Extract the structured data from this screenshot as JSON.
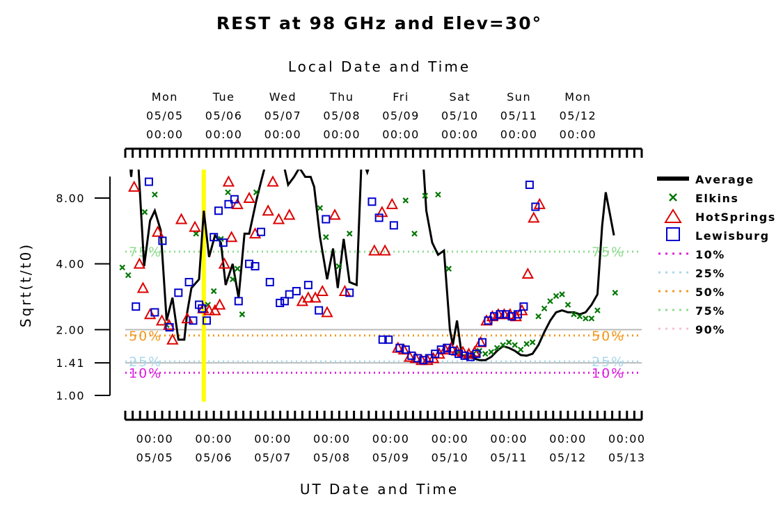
{
  "chart_data": {
    "type": "scatter",
    "title": "REST at 98 GHz and Elev=30°",
    "top_axis_title": "Local Date and Time",
    "xlabel": "UT Date and Time",
    "ylabel": "Sqrt(t/t0)",
    "y_scale": "log",
    "ylim": [
      1.0,
      11.0
    ],
    "xlim": [
      "05/04 12:00",
      "05/13 06:00"
    ],
    "y_ticks": [
      {
        "value": 1.0,
        "label": "1.00"
      },
      {
        "value": 1.41,
        "label": "1.41"
      },
      {
        "value": 2.0,
        "label": "2.00"
      },
      {
        "value": 4.0,
        "label": "4.00"
      },
      {
        "value": 8.0,
        "label": "8.00"
      }
    ],
    "bottom_ticks": [
      {
        "day": 0.5,
        "time": "00:00",
        "date": "05/05"
      },
      {
        "day": 1.5,
        "time": "00:00",
        "date": "05/06"
      },
      {
        "day": 2.5,
        "time": "00:00",
        "date": "05/07"
      },
      {
        "day": 3.5,
        "time": "00:00",
        "date": "05/08"
      },
      {
        "day": 4.5,
        "time": "00:00",
        "date": "05/09"
      },
      {
        "day": 5.5,
        "time": "00:00",
        "date": "05/10"
      },
      {
        "day": 6.5,
        "time": "00:00",
        "date": "05/11"
      },
      {
        "day": 7.5,
        "time": "00:00",
        "date": "05/12"
      },
      {
        "day": 8.5,
        "time": "00:00",
        "date": "05/13"
      }
    ],
    "top_ticks": [
      {
        "day": 0.67,
        "dow": "Mon",
        "date": "05/05",
        "time": "00:00"
      },
      {
        "day": 1.67,
        "dow": "Tue",
        "date": "05/06",
        "time": "00:00"
      },
      {
        "day": 2.67,
        "dow": "Wed",
        "date": "05/07",
        "time": "00:00"
      },
      {
        "day": 3.67,
        "dow": "Thu",
        "date": "05/08",
        "time": "00:00"
      },
      {
        "day": 4.67,
        "dow": "Fri",
        "date": "05/09",
        "time": "00:00"
      },
      {
        "day": 5.67,
        "dow": "Sat",
        "date": "05/10",
        "time": "00:00"
      },
      {
        "day": 6.67,
        "dow": "Sun",
        "date": "05/11",
        "time": "00:00"
      },
      {
        "day": 7.67,
        "dow": "Mon",
        "date": "05/12",
        "time": "00:00"
      }
    ],
    "current_time_marker": {
      "day": 1.33,
      "color": "#ffff00"
    },
    "reference_lines": [
      {
        "value": 2.0,
        "color": "#bbbbbb"
      },
      {
        "value": 1.41,
        "color": "#bbbbbb"
      }
    ],
    "percentiles": [
      {
        "label": "10%",
        "value": 1.27,
        "color": "#dd22dd"
      },
      {
        "label": "25%",
        "value": 1.43,
        "color": "#a8d8ea"
      },
      {
        "label": "50%",
        "value": 1.88,
        "color": "#f09a20"
      },
      {
        "label": "75%",
        "value": 4.55,
        "color": "#8fdc8f"
      }
    ],
    "legend": [
      {
        "name": "Average",
        "symbol": "line",
        "color": "#000000"
      },
      {
        "name": "Elkins",
        "symbol": "x",
        "color": "#007700"
      },
      {
        "name": "HotSprings",
        "symbol": "triangle",
        "color": "#dd0000"
      },
      {
        "name": "Lewisburg",
        "symbol": "square",
        "color": "#0000cc"
      },
      {
        "name": "10%",
        "symbol": "dotted",
        "color": "#dd22dd"
      },
      {
        "name": "25%",
        "symbol": "dotted",
        "color": "#a8d8ea"
      },
      {
        "name": "50%",
        "symbol": "dotted",
        "color": "#f09a20"
      },
      {
        "name": "75%",
        "symbol": "dotted",
        "color": "#8fdc8f"
      },
      {
        "name": "90%",
        "symbol": "dotted",
        "color": "#f7c0cc"
      }
    ],
    "series": [
      {
        "name": "Average",
        "type": "line",
        "color": "#000000",
        "segments": [
          [
            [
              0.08,
              11.5
            ],
            [
              0.1,
              10.0
            ],
            [
              0.12,
              11.5
            ]
          ],
          [
            [
              0.22,
              11.5
            ],
            [
              0.32,
              3.9
            ],
            [
              0.42,
              6.3
            ],
            [
              0.5,
              7.0
            ],
            [
              0.6,
              5.7
            ],
            [
              0.7,
              2.2
            ],
            [
              0.8,
              2.8
            ],
            [
              0.9,
              1.8
            ],
            [
              1.0,
              1.8
            ],
            [
              1.05,
              2.4
            ],
            [
              1.12,
              3.1
            ],
            [
              1.25,
              3.4
            ],
            [
              1.33,
              7.0
            ],
            [
              1.42,
              4.3
            ],
            [
              1.52,
              5.4
            ],
            [
              1.62,
              5.0
            ],
            [
              1.7,
              3.2
            ],
            [
              1.82,
              4.0
            ],
            [
              1.92,
              2.8
            ],
            [
              2.02,
              5.5
            ],
            [
              2.1,
              5.5
            ],
            [
              2.22,
              7.8
            ],
            [
              2.3,
              9.5
            ],
            [
              2.38,
              11.5
            ]
          ],
          [
            [
              2.68,
              11.5
            ],
            [
              2.76,
              9.2
            ],
            [
              2.86,
              10.0
            ],
            [
              2.95,
              11.0
            ],
            [
              3.05,
              10.0
            ],
            [
              3.14,
              10.0
            ],
            [
              3.2,
              9.0
            ],
            [
              3.3,
              5.3
            ],
            [
              3.42,
              3.4
            ],
            [
              3.52,
              4.7
            ],
            [
              3.6,
              3.1
            ],
            [
              3.7,
              5.2
            ],
            [
              3.8,
              3.3
            ],
            [
              3.92,
              3.2
            ],
            [
              4.0,
              11.5
            ]
          ],
          [
            [
              4.05,
              11.5
            ],
            [
              4.1,
              10.5
            ],
            [
              4.15,
              11.5
            ]
          ],
          [
            [
              5.05,
              11.5
            ],
            [
              5.1,
              7.0
            ],
            [
              5.2,
              5.0
            ],
            [
              5.3,
              4.4
            ],
            [
              5.4,
              4.6
            ],
            [
              5.5,
              2.0
            ],
            [
              5.55,
              1.7
            ],
            [
              5.62,
              2.2
            ],
            [
              5.7,
              1.53
            ],
            [
              5.8,
              1.5
            ],
            [
              5.9,
              1.48
            ],
            [
              6.0,
              1.45
            ],
            [
              6.1,
              1.45
            ],
            [
              6.2,
              1.5
            ],
            [
              6.3,
              1.6
            ],
            [
              6.4,
              1.68
            ],
            [
              6.5,
              1.65
            ],
            [
              6.6,
              1.6
            ],
            [
              6.7,
              1.53
            ],
            [
              6.8,
              1.52
            ],
            [
              6.9,
              1.55
            ],
            [
              7.0,
              1.7
            ],
            [
              7.1,
              1.95
            ],
            [
              7.2,
              2.2
            ],
            [
              7.3,
              2.4
            ],
            [
              7.4,
              2.45
            ],
            [
              7.5,
              2.4
            ],
            [
              7.6,
              2.4
            ],
            [
              7.7,
              2.35
            ],
            [
              7.8,
              2.4
            ],
            [
              7.9,
              2.6
            ],
            [
              8.0,
              2.9
            ],
            [
              8.08,
              6.0
            ],
            [
              8.14,
              8.5
            ],
            [
              8.2,
              7.0
            ],
            [
              8.28,
              5.4
            ]
          ]
        ]
      },
      {
        "name": "Elkins",
        "type": "scatter",
        "marker": "x",
        "color": "#007700",
        "points": [
          [
            -0.05,
            3.85
          ],
          [
            0.05,
            3.55
          ],
          [
            0.33,
            6.9
          ],
          [
            0.5,
            8.3
          ],
          [
            0.7,
            2.1
          ],
          [
            1.2,
            5.5
          ],
          [
            1.4,
            2.6
          ],
          [
            1.5,
            3.0
          ],
          [
            1.62,
            5.2
          ],
          [
            1.74,
            8.5
          ],
          [
            1.82,
            3.4
          ],
          [
            1.9,
            3.8
          ],
          [
            1.98,
            2.35
          ],
          [
            2.22,
            8.5
          ],
          [
            3.3,
            7.2
          ],
          [
            3.4,
            5.3
          ],
          [
            3.62,
            3.9
          ],
          [
            3.8,
            5.5
          ],
          [
            4.75,
            7.8
          ],
          [
            4.9,
            5.5
          ],
          [
            5.08,
            8.2
          ],
          [
            5.3,
            8.3
          ],
          [
            5.48,
            3.8
          ],
          [
            5.65,
            1.58
          ],
          [
            5.78,
            1.5
          ],
          [
            5.9,
            1.55
          ],
          [
            6.0,
            1.6
          ],
          [
            6.1,
            1.55
          ],
          [
            6.2,
            1.58
          ],
          [
            6.3,
            1.65
          ],
          [
            6.4,
            1.7
          ],
          [
            6.5,
            1.75
          ],
          [
            6.6,
            1.7
          ],
          [
            6.7,
            1.62
          ],
          [
            6.8,
            1.72
          ],
          [
            6.9,
            1.75
          ],
          [
            7.0,
            2.3
          ],
          [
            7.1,
            2.5
          ],
          [
            7.2,
            2.7
          ],
          [
            7.3,
            2.85
          ],
          [
            7.4,
            2.9
          ],
          [
            7.5,
            2.6
          ],
          [
            7.6,
            2.35
          ],
          [
            7.7,
            2.3
          ],
          [
            7.8,
            2.25
          ],
          [
            7.9,
            2.25
          ],
          [
            8.0,
            2.45
          ],
          [
            8.3,
            2.95
          ]
        ]
      },
      {
        "name": "HotSprings",
        "type": "scatter",
        "marker": "triangle",
        "color": "#dd0000",
        "points": [
          [
            0.15,
            9.0
          ],
          [
            0.24,
            4.0
          ],
          [
            0.3,
            3.1
          ],
          [
            0.42,
            2.35
          ],
          [
            0.55,
            5.6
          ],
          [
            0.62,
            2.2
          ],
          [
            0.74,
            2.1
          ],
          [
            0.8,
            1.8
          ],
          [
            0.95,
            6.4
          ],
          [
            1.05,
            2.25
          ],
          [
            1.18,
            5.9
          ],
          [
            1.32,
            2.5
          ],
          [
            1.42,
            2.45
          ],
          [
            1.52,
            2.45
          ],
          [
            1.6,
            2.6
          ],
          [
            1.68,
            4.0
          ],
          [
            1.75,
            9.5
          ],
          [
            1.8,
            5.3
          ],
          [
            1.9,
            7.5
          ],
          [
            2.1,
            8.0
          ],
          [
            2.2,
            5.5
          ],
          [
            2.42,
            7.0
          ],
          [
            2.5,
            9.5
          ],
          [
            2.6,
            6.4
          ],
          [
            2.78,
            6.7
          ],
          [
            3.0,
            2.7
          ],
          [
            3.1,
            2.8
          ],
          [
            3.22,
            2.8
          ],
          [
            3.34,
            3.0
          ],
          [
            3.42,
            2.4
          ],
          [
            3.55,
            6.7
          ],
          [
            3.72,
            3.0
          ],
          [
            4.22,
            4.6
          ],
          [
            4.35,
            6.9
          ],
          [
            4.4,
            4.6
          ],
          [
            4.52,
            7.5
          ],
          [
            4.62,
            1.65
          ],
          [
            4.72,
            1.62
          ],
          [
            4.82,
            1.5
          ],
          [
            4.92,
            1.48
          ],
          [
            5.02,
            1.45
          ],
          [
            5.12,
            1.45
          ],
          [
            5.22,
            1.48
          ],
          [
            5.32,
            1.55
          ],
          [
            5.42,
            1.62
          ],
          [
            5.52,
            1.65
          ],
          [
            5.62,
            1.6
          ],
          [
            5.72,
            1.58
          ],
          [
            5.82,
            1.55
          ],
          [
            5.92,
            1.58
          ],
          [
            6.02,
            1.75
          ],
          [
            6.12,
            2.2
          ],
          [
            6.22,
            2.3
          ],
          [
            6.32,
            2.35
          ],
          [
            6.42,
            2.35
          ],
          [
            6.52,
            2.35
          ],
          [
            6.62,
            2.3
          ],
          [
            6.72,
            2.45
          ],
          [
            6.82,
            3.6
          ],
          [
            6.92,
            6.5
          ],
          [
            7.02,
            7.5
          ]
        ]
      },
      {
        "name": "Lewisburg",
        "type": "scatter",
        "marker": "square",
        "color": "#0000cc",
        "points": [
          [
            0.18,
            2.55
          ],
          [
            0.4,
            9.5
          ],
          [
            0.5,
            2.4
          ],
          [
            0.63,
            5.1
          ],
          [
            0.75,
            2.05
          ],
          [
            0.9,
            2.95
          ],
          [
            1.08,
            3.3
          ],
          [
            1.15,
            2.2
          ],
          [
            1.25,
            2.6
          ],
          [
            1.3,
            2.5
          ],
          [
            1.38,
            2.2
          ],
          [
            1.5,
            5.3
          ],
          [
            1.58,
            7.0
          ],
          [
            1.66,
            5.0
          ],
          [
            1.75,
            7.5
          ],
          [
            1.85,
            7.9
          ],
          [
            1.92,
            2.7
          ],
          [
            2.1,
            4.0
          ],
          [
            2.2,
            3.9
          ],
          [
            2.3,
            5.6
          ],
          [
            2.45,
            3.3
          ],
          [
            2.62,
            2.65
          ],
          [
            2.7,
            2.7
          ],
          [
            2.78,
            2.9
          ],
          [
            2.9,
            3.0
          ],
          [
            3.1,
            3.2
          ],
          [
            3.28,
            2.45
          ],
          [
            3.4,
            6.4
          ],
          [
            3.8,
            2.95
          ],
          [
            4.18,
            7.7
          ],
          [
            4.3,
            6.5
          ],
          [
            4.36,
            1.8
          ],
          [
            4.46,
            1.8
          ],
          [
            4.55,
            6.0
          ],
          [
            4.65,
            1.65
          ],
          [
            4.75,
            1.62
          ],
          [
            4.85,
            1.52
          ],
          [
            4.95,
            1.48
          ],
          [
            5.05,
            1.45
          ],
          [
            5.15,
            1.48
          ],
          [
            5.25,
            1.55
          ],
          [
            5.35,
            1.62
          ],
          [
            5.45,
            1.65
          ],
          [
            5.55,
            1.6
          ],
          [
            5.65,
            1.55
          ],
          [
            5.75,
            1.52
          ],
          [
            5.85,
            1.5
          ],
          [
            5.95,
            1.55
          ],
          [
            6.05,
            1.75
          ],
          [
            6.15,
            2.2
          ],
          [
            6.25,
            2.3
          ],
          [
            6.35,
            2.35
          ],
          [
            6.45,
            2.35
          ],
          [
            6.55,
            2.3
          ],
          [
            6.65,
            2.35
          ],
          [
            6.75,
            2.55
          ],
          [
            6.85,
            9.2
          ],
          [
            6.95,
            7.3
          ]
        ]
      }
    ]
  }
}
